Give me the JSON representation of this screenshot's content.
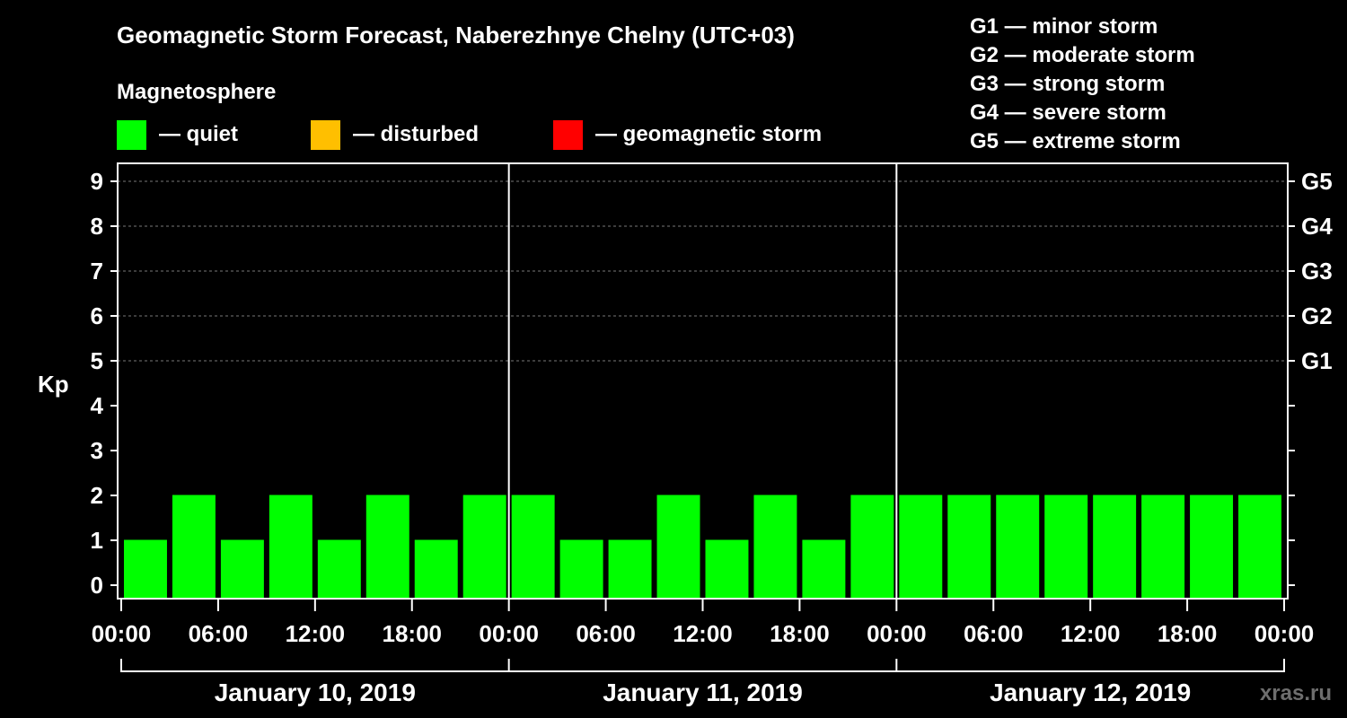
{
  "chart_data": {
    "type": "bar",
    "title": "Geomagnetic Storm Forecast, Naberezhnye Chelny (UTC+03)",
    "legend_title": "Magnetosphere",
    "legend": [
      {
        "label": "— quiet",
        "color": "#00ff00"
      },
      {
        "label": "— disturbed",
        "color": "#ffbf00"
      },
      {
        "label": "— geomagnetic storm",
        "color": "#ff0000"
      }
    ],
    "storm_scale": [
      "G1 — minor storm",
      "G2 — moderate storm",
      "G3 — strong storm",
      "G4 — severe storm",
      "G5 — extreme storm"
    ],
    "ylabel": "Kp",
    "ylim": [
      0,
      9
    ],
    "y_ticks": [
      "0",
      "1",
      "2",
      "3",
      "4",
      "5",
      "6",
      "7",
      "8",
      "9"
    ],
    "right_ticks": [
      {
        "kp": 5,
        "label": "G1"
      },
      {
        "kp": 6,
        "label": "G2"
      },
      {
        "kp": 7,
        "label": "G3"
      },
      {
        "kp": 8,
        "label": "G4"
      },
      {
        "kp": 9,
        "label": "G5"
      }
    ],
    "grid": "dashed lines at Kp 5–9",
    "x_ticks": [
      "00:00",
      "06:00",
      "12:00",
      "18:00",
      "00:00",
      "06:00",
      "12:00",
      "18:00",
      "00:00",
      "06:00",
      "12:00",
      "18:00",
      "00:00"
    ],
    "days": [
      "January 10, 2019",
      "January 11, 2019",
      "January 12, 2019"
    ],
    "interval_hours": 3,
    "values": [
      1,
      2,
      1,
      2,
      1,
      2,
      1,
      2,
      2,
      1,
      1,
      2,
      1,
      2,
      1,
      2,
      2,
      2,
      2,
      2,
      2,
      2,
      2,
      2
    ],
    "bar_color": "#00ff00"
  },
  "watermark": "xras.ru"
}
